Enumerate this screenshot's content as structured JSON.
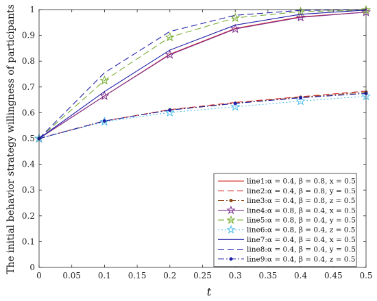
{
  "chart_data": {
    "type": "line",
    "xlabel": "t",
    "ylabel": "The initial behavior strategy willingness of participants",
    "xlim": [
      0,
      0.5
    ],
    "ylim": [
      0,
      1
    ],
    "xticks": [
      "0",
      "0.05",
      "0.1",
      "0.15",
      "0.2",
      "0.25",
      "0.3",
      "0.35",
      "0.4",
      "0.45",
      "0.5"
    ],
    "yticks": [
      "0",
      "0.1",
      "0.2",
      "0.3",
      "0.4",
      "0.5",
      "0.6",
      "0.7",
      "0.8",
      "0.9",
      "1"
    ],
    "grid": false,
    "legend_position": "right",
    "x": [
      0,
      0.1,
      0.2,
      0.3,
      0.4,
      0.5
    ],
    "series": [
      {
        "name": "line1:α = 0.4, β = 0.8, x = 0.5",
        "values": [
          0.5,
          0.665,
          0.827,
          0.927,
          0.972,
          0.99
        ],
        "color": "#d62728",
        "dash": "solid",
        "marker": "none"
      },
      {
        "name": "line2:α = 0.4, β = 0.8, y = 0.5",
        "values": [
          0.5,
          0.568,
          0.612,
          0.64,
          0.662,
          0.684
        ],
        "color": "#d62728",
        "dash": "dashed",
        "marker": "none"
      },
      {
        "name": "line3:α = 0.4, β = 0.8, z = 0.5",
        "values": [
          0.5,
          0.568,
          0.611,
          0.637,
          0.66,
          0.68
        ],
        "color": "#8b4513",
        "dash": "dashdot",
        "marker": "dot"
      },
      {
        "name": "line4:α = 0.8, β = 0.4, x = 0.5",
        "values": [
          0.5,
          0.665,
          0.825,
          0.925,
          0.97,
          0.99
        ],
        "color": "#7e2f8e",
        "dash": "solid",
        "marker": "star"
      },
      {
        "name": "line5:α = 0.8, β = 0.4, y = 0.5",
        "values": [
          0.5,
          0.725,
          0.893,
          0.968,
          0.992,
          0.998
        ],
        "color": "#77ac30",
        "dash": "dashed",
        "marker": "star"
      },
      {
        "name": "line6:α = 0.8, β = 0.4, z = 0.5",
        "values": [
          0.5,
          0.565,
          0.601,
          0.623,
          0.645,
          0.664
        ],
        "color": "#4dbeee",
        "dash": "dotted",
        "marker": "star"
      },
      {
        "name": "line7:α = 0.4, β = 0.4, x = 0.5",
        "values": [
          0.5,
          0.682,
          0.843,
          0.94,
          0.982,
          0.998
        ],
        "color": "#1f1fa8",
        "dash": "solid",
        "marker": "none"
      },
      {
        "name": "line8:α = 0.4, β = 0.4, y = 0.5",
        "values": [
          0.5,
          0.755,
          0.915,
          0.978,
          0.997,
          1.0
        ],
        "color": "#1f1fa8",
        "dash": "dashed",
        "marker": "none"
      },
      {
        "name": "line9:α = 0.4, β = 0.4, z = 0.5",
        "values": [
          0.5,
          0.568,
          0.61,
          0.636,
          0.658,
          0.675
        ],
        "color": "#1f1fa8",
        "dash": "dashdot",
        "marker": "dot"
      }
    ]
  }
}
